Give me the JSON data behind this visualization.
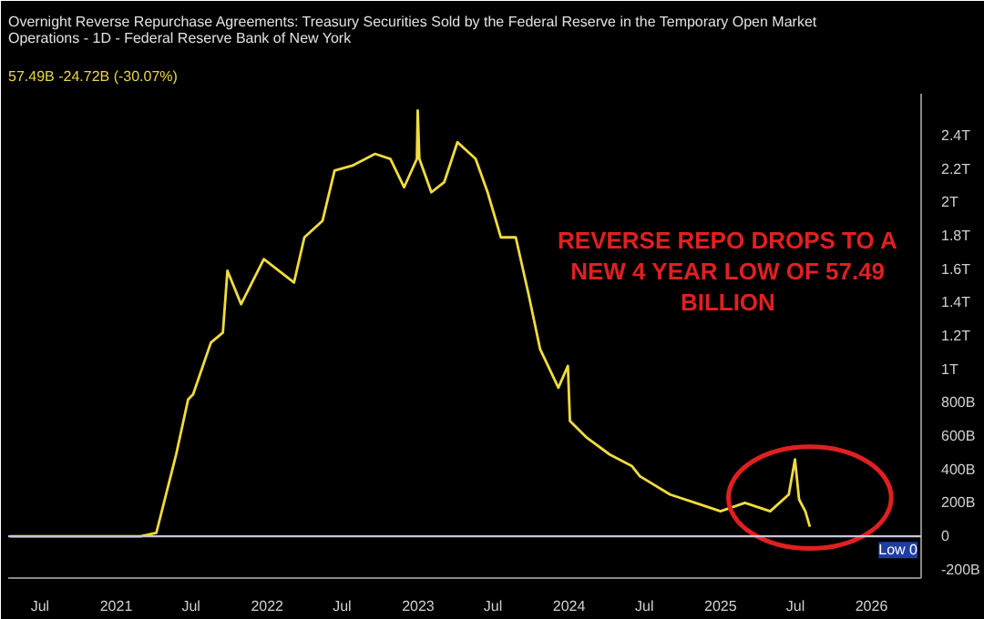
{
  "chart_data": {
    "type": "line",
    "title": "Overnight Reverse Repurchase Agreements: Treasury Securities Sold by the Federal Reserve in the Temporary Open Market Operations - 1D - Federal Reserve Bank of New York",
    "subtitle": "57.49B  -24.72B (-30.07%)",
    "x": [
      "2020-04-20",
      "2020-10-01",
      "2021-03-01",
      "2021-04-08",
      "2021-05-26",
      "2021-06-24",
      "2021-07-06",
      "2021-08-18",
      "2021-09-16",
      "2021-09-27",
      "2021-10-30",
      "2021-12-24",
      "2022-03-07",
      "2022-04-01",
      "2022-05-15",
      "2022-06-13",
      "2022-07-26",
      "2022-09-19",
      "2022-10-26",
      "2022-11-28",
      "2022-12-29",
      "2022-12-31",
      "2023-01-04",
      "2023-02-02",
      "2023-03-05",
      "2023-04-06",
      "2023-05-20",
      "2023-06-18",
      "2023-07-20",
      "2023-08-25",
      "2023-09-24",
      "2023-10-23",
      "2023-12-06",
      "2023-12-29",
      "2024-01-03",
      "2024-02-13",
      "2024-04-08",
      "2024-06-01",
      "2024-06-20",
      "2024-09-01",
      "2024-11-01",
      "2025-01-01",
      "2025-03-01",
      "2025-05-01",
      "2025-06-15",
      "2025-06-30",
      "2025-07-10",
      "2025-07-25",
      "2025-08-05"
    ],
    "series": [
      {
        "color": "#f0dc3c",
        "values": [
          0,
          0,
          0,
          20000000000.0,
          490000000000.0,
          820000000000.0,
          850000000000.0,
          1160000000000.0,
          1220000000000.0,
          1590000000000.0,
          1390000000000.0,
          1660000000000.0,
          1520000000000.0,
          1790000000000.0,
          1890000000000.0,
          2190000000000.0,
          2220000000000.0,
          2290000000000.0,
          2260000000000.0,
          2090000000000.0,
          2260000000000.0,
          2550000000000.0,
          2260000000000.0,
          2060000000000.0,
          2120000000000.0,
          2360000000000.0,
          2260000000000.0,
          2060000000000.0,
          1790000000000.0,
          1790000000000.0,
          1460000000000.0,
          1120000000000.0,
          890000000000.0,
          1020000000000.0,
          690000000000.0,
          590000000000.0,
          490000000000.0,
          420000000000.0,
          360000000000.0,
          250000000000.0,
          200000000000.0,
          150000000000.0,
          200000000000.0,
          150000000000.0,
          250000000000.0,
          460000000000.0,
          220000000000.0,
          150000000000.0,
          57490000000.0
        ]
      }
    ],
    "xlim": [
      "2020-04-15",
      "2026-05-01"
    ],
    "xticks": [
      {
        "value": "2020-07",
        "label": "Jul"
      },
      {
        "value": "2021",
        "label": "2021"
      },
      {
        "value": "2021-07",
        "label": "Jul"
      },
      {
        "value": "2022",
        "label": "2022"
      },
      {
        "value": "2022-07",
        "label": "Jul"
      },
      {
        "value": "2023",
        "label": "2023"
      },
      {
        "value": "2023-07",
        "label": "Jul"
      },
      {
        "value": "2024",
        "label": "2024"
      },
      {
        "value": "2024-07",
        "label": "Jul"
      },
      {
        "value": "2025",
        "label": "2025"
      },
      {
        "value": "2025-07",
        "label": "Jul"
      },
      {
        "value": "2026",
        "label": "2026"
      }
    ],
    "ylim": [
      -250000000000.0,
      2650000000000.0
    ],
    "yticks": [
      {
        "value": -200000000000.0,
        "label": "-200B"
      },
      0,
      {
        "value": 200000000000.0,
        "label": "200B"
      },
      {
        "value": 400000000000.0,
        "label": "400B"
      },
      {
        "value": 600000000000.0,
        "label": "600B"
      },
      {
        "value": 800000000000.0,
        "label": "800B"
      },
      {
        "value": 1000000000000.0,
        "label": "1T"
      },
      {
        "value": 1200000000000.0,
        "label": "1.2T"
      },
      {
        "value": 1400000000000.0,
        "label": "1.4T"
      },
      {
        "value": 1600000000000.0,
        "label": "1.6T"
      },
      {
        "value": 1800000000000.0,
        "label": "1.8T"
      },
      {
        "value": 2000000000000.0,
        "label": "2T"
      },
      {
        "value": 2200000000000.0,
        "label": "2.2T"
      },
      {
        "value": 2400000000000.0,
        "label": "2.4T"
      }
    ],
    "ref_lines": [
      {
        "axis": "y",
        "value": 0,
        "label": "Low 0",
        "color": "#c8c8d8"
      }
    ],
    "annotations": [
      "REVERSE REPO DROPS TO A NEW 4 YEAR LOW OF 57.49 BILLION"
    ],
    "grid": false
  }
}
